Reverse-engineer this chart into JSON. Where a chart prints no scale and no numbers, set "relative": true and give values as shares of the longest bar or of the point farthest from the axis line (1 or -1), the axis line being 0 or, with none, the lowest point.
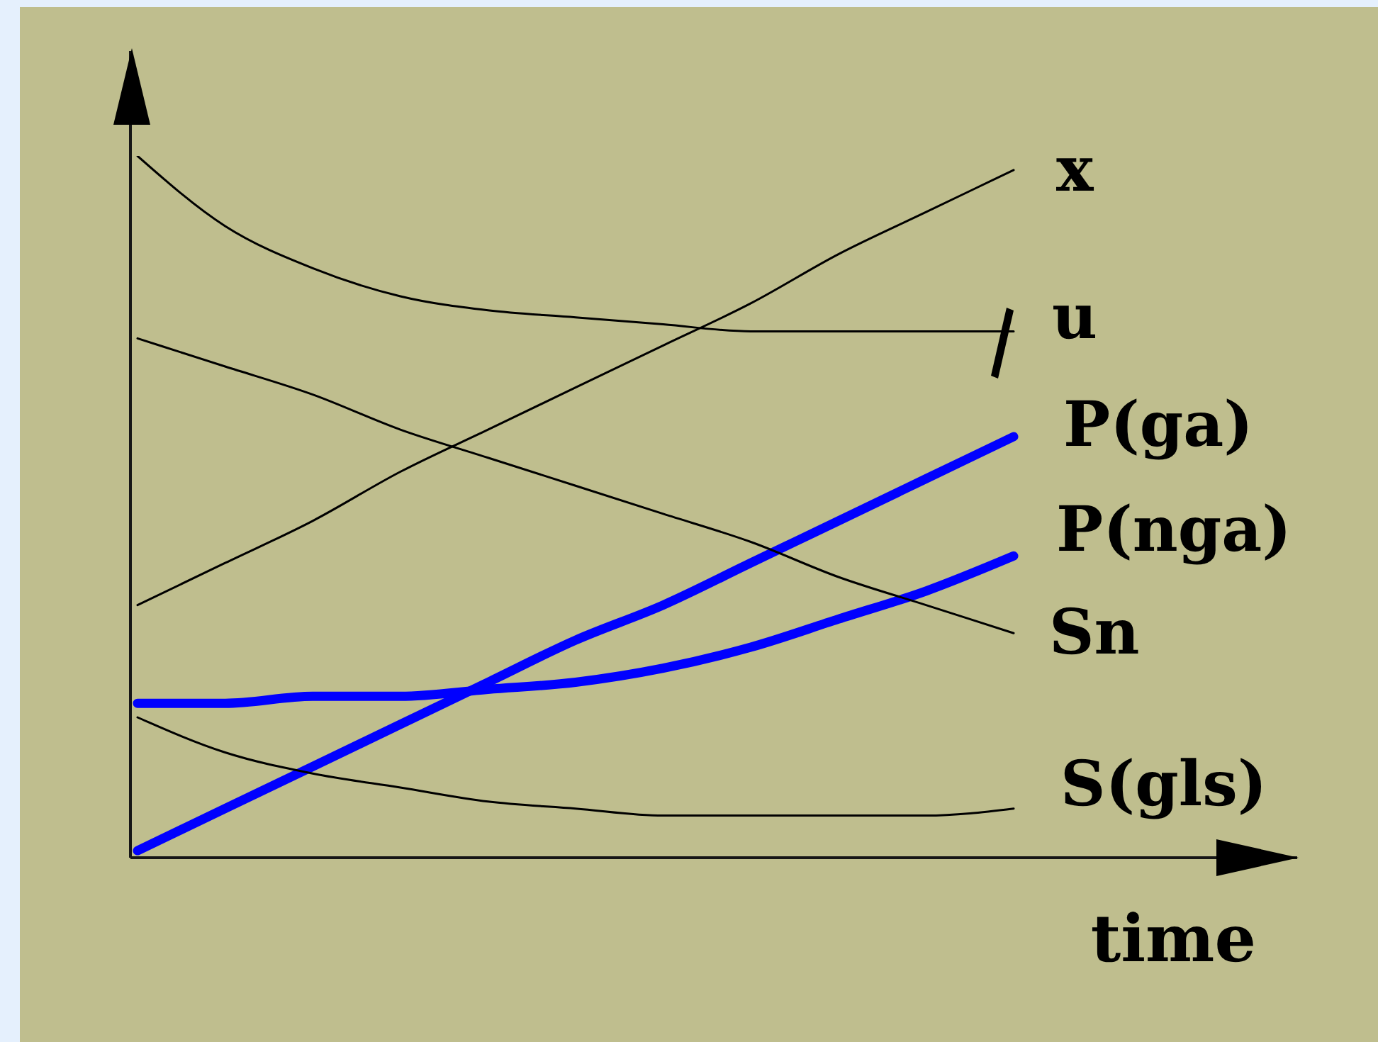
{
  "chart_data": {
    "type": "line",
    "xlabel": "time",
    "relative": true,
    "categories": [
      null,
      null,
      null,
      null,
      null,
      null,
      null,
      null,
      null,
      null,
      null
    ],
    "series": [
      {
        "name": "x",
        "color": "#000000",
        "values": [
          0.36,
          0.42,
          0.48,
          0.55,
          0.61,
          0.67,
          0.73,
          0.79,
          0.86,
          0.92,
          0.98
        ]
      },
      {
        "name": "u",
        "color": "#000000",
        "values": [
          1.0,
          0.9,
          0.84,
          0.8,
          0.78,
          0.77,
          0.76,
          0.75,
          0.75,
          0.75,
          0.75
        ]
      },
      {
        "name": "P(ga)",
        "color": "#0000ff",
        "values": [
          0.01,
          0.07,
          0.13,
          0.19,
          0.25,
          0.31,
          0.36,
          0.42,
          0.48,
          0.54,
          0.6
        ]
      },
      {
        "name": "P(nga)",
        "color": "#0000ff",
        "values": [
          0.22,
          0.22,
          0.23,
          0.23,
          0.24,
          0.25,
          0.27,
          0.3,
          0.34,
          0.38,
          0.43
        ]
      },
      {
        "name": "Sn",
        "color": "#000000",
        "values": [
          0.74,
          0.7,
          0.66,
          0.61,
          0.57,
          0.53,
          0.49,
          0.45,
          0.4,
          0.36,
          0.32
        ]
      },
      {
        "name": "S(gls)",
        "color": "#000000",
        "values": [
          0.2,
          0.15,
          0.12,
          0.1,
          0.08,
          0.07,
          0.06,
          0.06,
          0.06,
          0.06,
          0.07
        ]
      }
    ]
  }
}
